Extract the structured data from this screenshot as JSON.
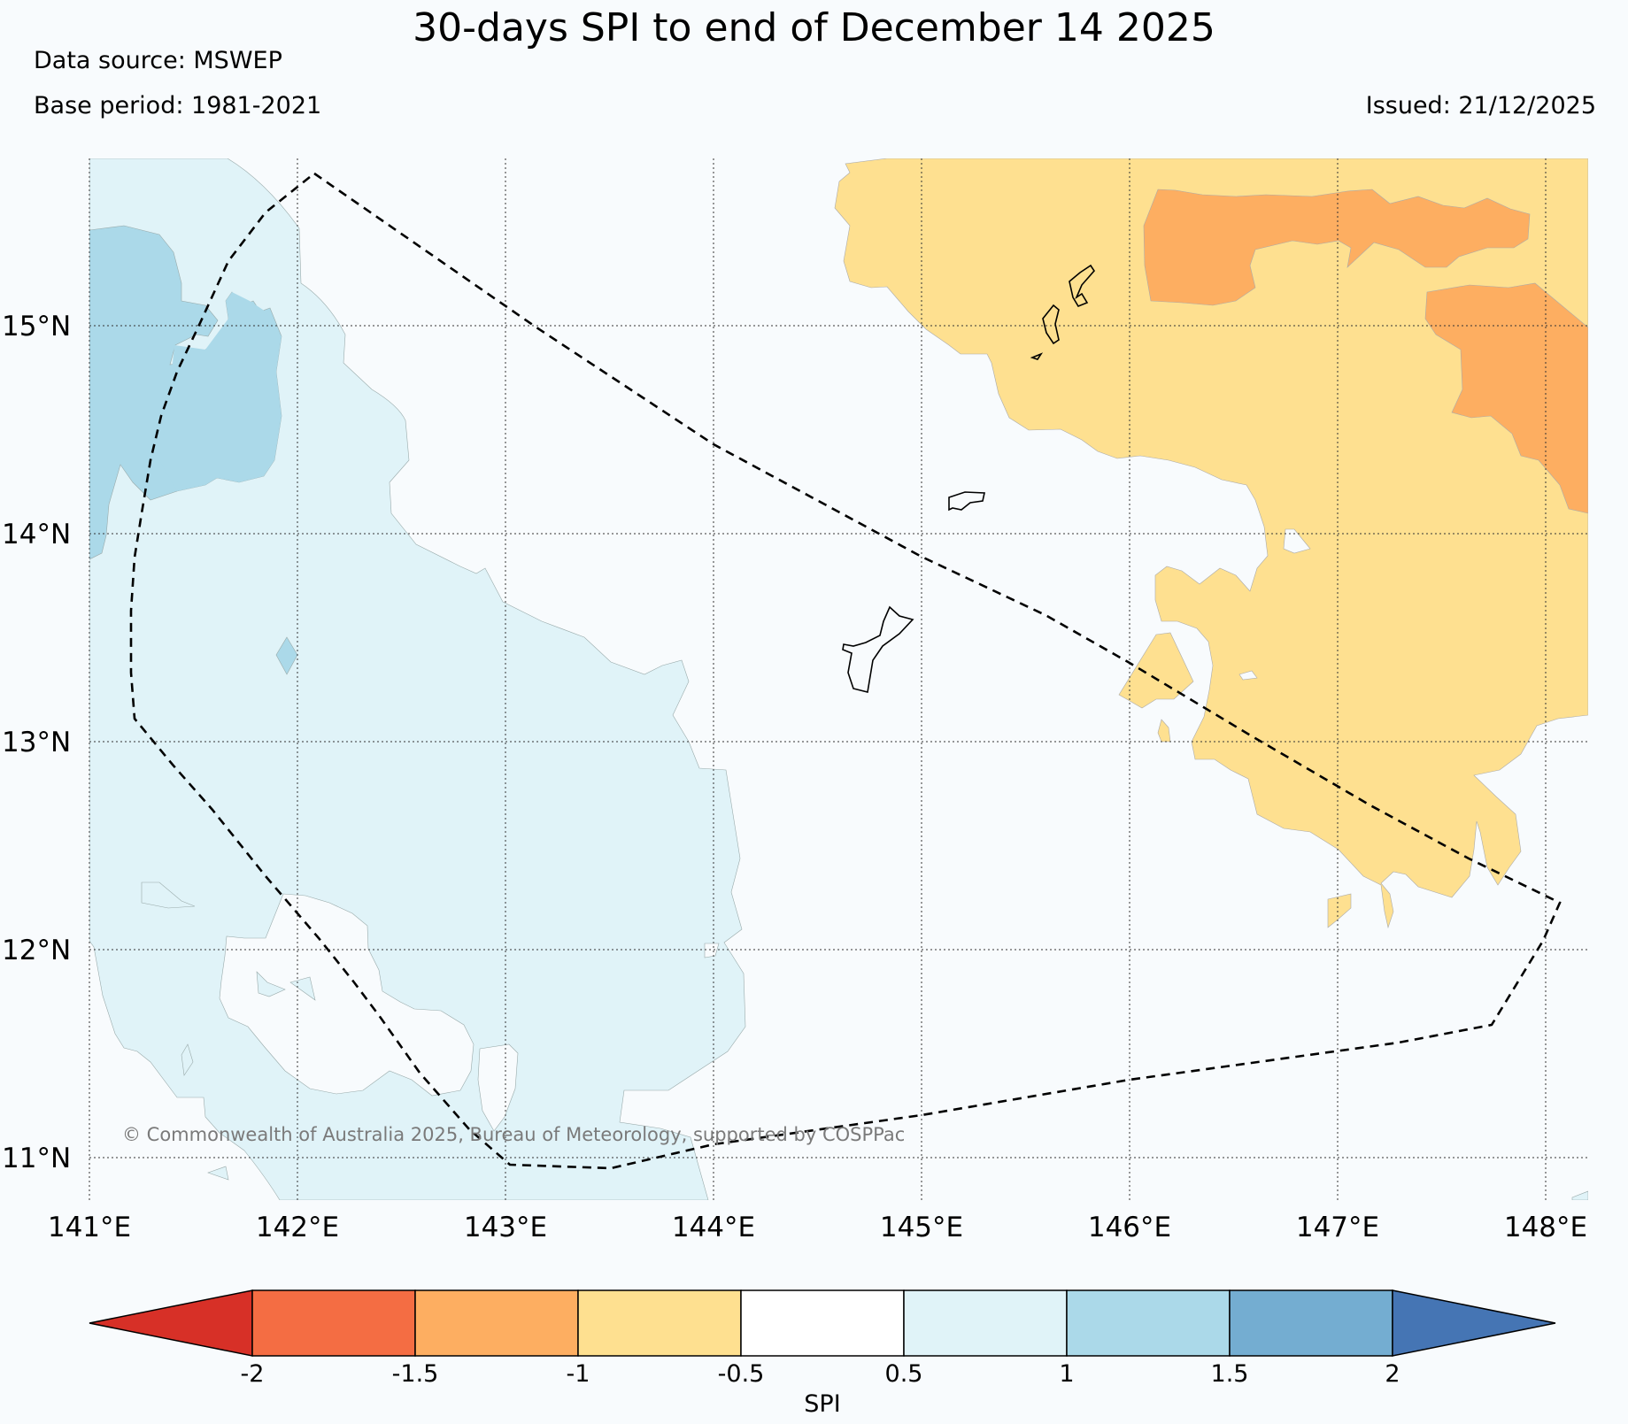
{
  "title": "30-days SPI to end of December 14 2025",
  "data_source": "Data source: MSWEP",
  "base_period": "Base period: 1981-2021",
  "issued": "Issued: 21/12/2025",
  "copyright": "© Commonwealth of Australia 2025, Bureau of Meteorology, supported by COSPPac",
  "map": {
    "lon_range": [
      141.0,
      148.2
    ],
    "lat_range": [
      10.8,
      15.8
    ],
    "lon_ticks": [
      {
        "value": 141,
        "label": "141°E"
      },
      {
        "value": 142,
        "label": "142°E"
      },
      {
        "value": 143,
        "label": "143°E"
      },
      {
        "value": 144,
        "label": "144°E"
      },
      {
        "value": 145,
        "label": "145°E"
      },
      {
        "value": 146,
        "label": "146°E"
      },
      {
        "value": 147,
        "label": "147°E"
      },
      {
        "value": 148,
        "label": "148°E"
      }
    ],
    "lat_ticks": [
      {
        "value": 15,
        "label": "15°N"
      },
      {
        "value": 14,
        "label": "14°N"
      },
      {
        "value": 13,
        "label": "13°N"
      },
      {
        "value": 12,
        "label": "12°N"
      },
      {
        "value": 11,
        "label": "11°N"
      }
    ]
  },
  "colorbar": {
    "label": "SPI",
    "ticks": [
      "-2",
      "-1.5",
      "-1",
      "-0.5",
      "0.5",
      "1",
      "1.5",
      "2"
    ],
    "colors": {
      "below_-2": "#d73027",
      "-2_to_-1.5": "#f46d43",
      "-1.5_to_-1": "#fdae61",
      "-1_to_-0.5": "#fee090",
      "-0.5_to_0.5": "#f8fbfd",
      "0.5_to_1": "#e0f3f8",
      "1_to_1.5": "#abd9e9",
      "1.5_to_2": "#74add1",
      "above_2": "#4575b4"
    }
  }
}
